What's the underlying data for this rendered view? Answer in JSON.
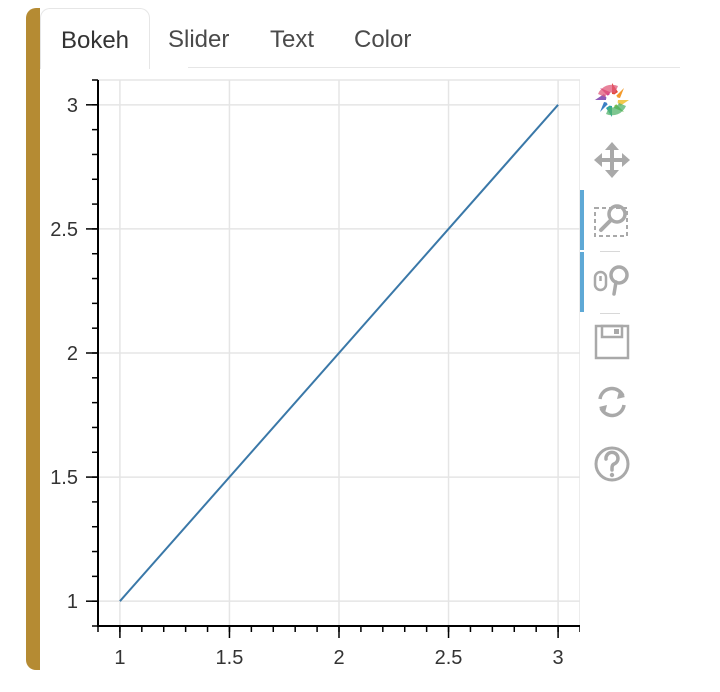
{
  "colors": {
    "accent": "#b58b33",
    "line": "#3a78a8",
    "grid": "#e5e5e5",
    "tool_icon": "#a9a9a9",
    "active_tool": "#5fa9d6"
  },
  "tabs": [
    {
      "label": "Bokeh",
      "active": true
    },
    {
      "label": "Slider",
      "active": false
    },
    {
      "label": "Text",
      "active": false
    },
    {
      "label": "Color",
      "active": false
    }
  ],
  "toolbar": {
    "tools": [
      {
        "icon": "bokeh-logo-icon",
        "active": false
      },
      {
        "icon": "pan-icon",
        "active": false
      },
      {
        "icon": "box-zoom-icon",
        "active": true
      },
      {
        "icon": "wheel-zoom-icon",
        "active": true
      },
      {
        "icon": "save-icon",
        "active": false
      },
      {
        "icon": "reset-icon",
        "active": false
      },
      {
        "icon": "help-icon",
        "active": false
      }
    ]
  },
  "chart_data": {
    "type": "line",
    "x": [
      1,
      3
    ],
    "series": [
      {
        "values": [
          1,
          3
        ]
      }
    ],
    "xlim": [
      0.9,
      3.1
    ],
    "ylim": [
      0.9,
      3.1
    ],
    "x_ticks": [
      "1",
      "1.5",
      "2",
      "2.5",
      "3"
    ],
    "y_ticks": [
      "1",
      "1.5",
      "2",
      "2.5",
      "3"
    ],
    "grid": true
  }
}
